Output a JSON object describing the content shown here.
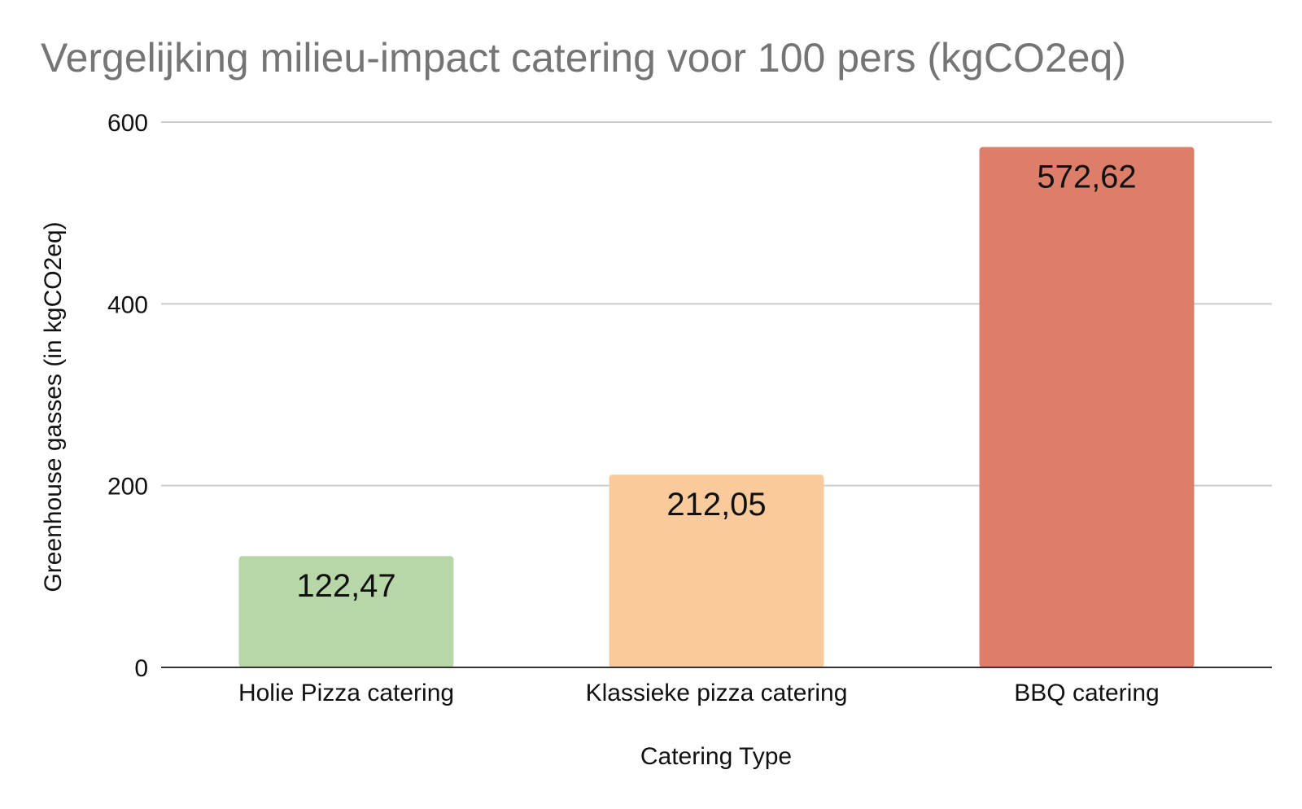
{
  "chart_data": {
    "type": "bar",
    "title": "Vergelijking milieu-impact catering voor 100 pers (kgCO2eq)",
    "xlabel": "Catering Type",
    "ylabel": "Greenhouse gasses (in kgCO2eq)",
    "categories": [
      "Holie Pizza catering",
      "Klassieke pizza catering",
      "BBQ catering"
    ],
    "values": [
      122.47,
      212.05,
      572.62
    ],
    "data_labels": [
      "122,47",
      "212,05",
      "572,62"
    ],
    "colors": [
      "#b7d7a8",
      "#f9cb9c",
      "#dd7e6b"
    ],
    "ylim": [
      0,
      600
    ],
    "yticks": [
      0,
      200,
      400,
      600
    ],
    "ytick_labels": [
      "0",
      "200",
      "400",
      "600"
    ],
    "grid": true,
    "legend": "none"
  }
}
